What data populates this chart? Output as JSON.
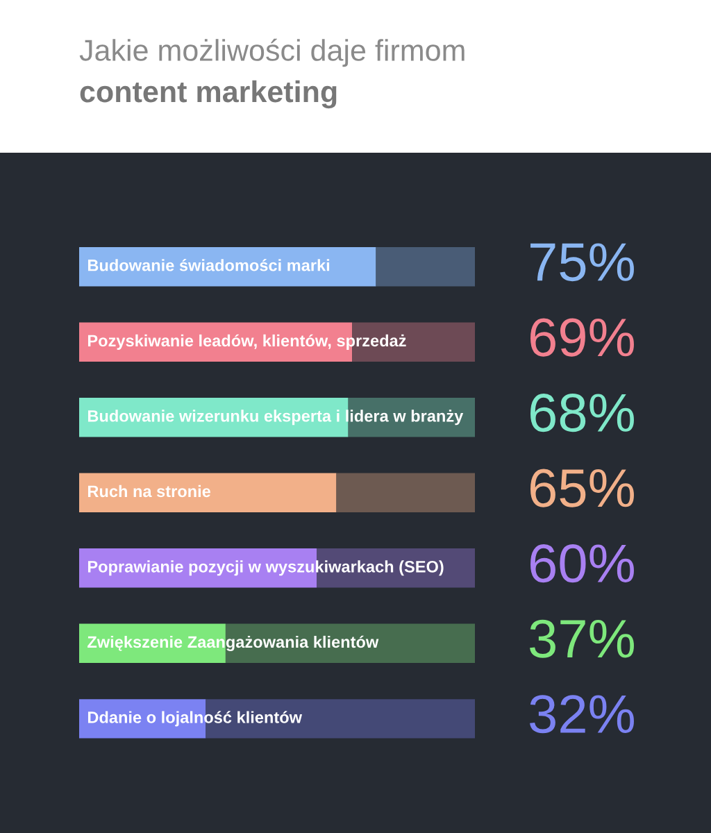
{
  "chart_data": {
    "type": "bar",
    "orientation": "horizontal",
    "title": "Jakie możliwości daje firmom",
    "subtitle": "content marketing",
    "categories": [
      "Budowanie świadomości marki",
      "Pozyskiwanie leadów, klientów, sprzedaż",
      "Budowanie wizerunku eksperta i lidera w branży",
      "Ruch na stronie",
      "Poprawianie pozycji w wyszukiwarkach (SEO)",
      "Zwiększenie Zaangażowania klientów",
      "Ddanie o lojalność klientów"
    ],
    "series": [
      {
        "values": [
          75,
          69,
          68,
          65,
          60,
          37,
          32
        ],
        "value_labels": [
          "75%",
          "69%",
          "68%",
          "65%",
          "60%",
          "37%",
          "32%"
        ],
        "colors": [
          "#8ab6f2",
          "#f2808f",
          "#7fe8c9",
          "#f2b089",
          "#a880f2",
          "#7ee87c",
          "#7b82f2"
        ]
      },
      {
        "values": [
          25,
          31,
          32,
          35,
          40,
          63,
          68
        ],
        "colors": [
          "#495c76",
          "#6d4a55",
          "#477068",
          "#6d5a51",
          "#534a76",
          "#476d4f",
          "#444976"
        ]
      }
    ],
    "stacked": true,
    "xlim": [
      0,
      100
    ],
    "tick_labels": false
  }
}
